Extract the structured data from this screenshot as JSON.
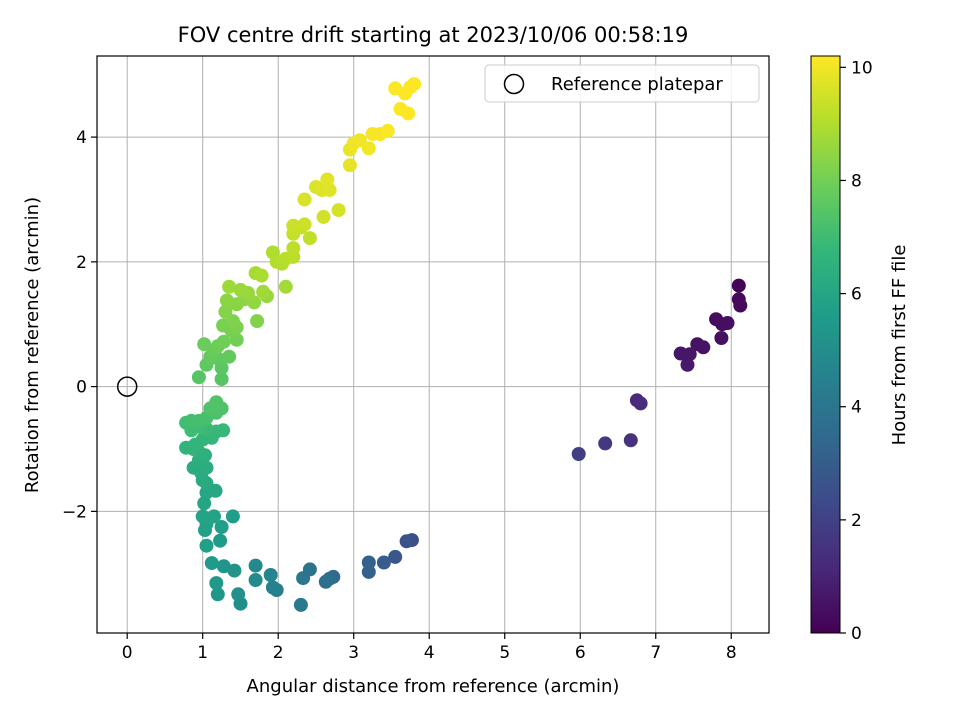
{
  "chart_data": {
    "type": "scatter",
    "title": "FOV centre drift starting at 2023/10/06 00:58:19",
    "xlabel": "Angular distance from reference (arcmin)",
    "ylabel": "Rotation from reference (arcmin)",
    "xlim": [
      -0.4,
      8.5
    ],
    "ylim": [
      -3.95,
      5.3
    ],
    "xticks": [
      0,
      1,
      2,
      3,
      4,
      5,
      6,
      7,
      8
    ],
    "yticks": [
      -2,
      0,
      2,
      4
    ],
    "xtick_labels": [
      "0",
      "1",
      "2",
      "3",
      "4",
      "5",
      "6",
      "7",
      "8"
    ],
    "ytick_labels": [
      "−2",
      "0",
      "2",
      "4"
    ],
    "grid": true,
    "legend": {
      "placement": "top-right",
      "entries": [
        {
          "label": "Reference platepar",
          "marker": "open-circle"
        }
      ]
    },
    "reference_point": {
      "x": 0,
      "y": 0
    },
    "colorbar": {
      "label": "Hours from first FF file",
      "colormap": "viridis",
      "range": [
        0,
        10.2
      ],
      "ticks": [
        0,
        2,
        4,
        6,
        8,
        10
      ],
      "tick_labels": [
        "0",
        "2",
        "4",
        "6",
        "8",
        "10"
      ]
    },
    "colormap_stops": [
      "#440154",
      "#482878",
      "#3e4989",
      "#31688e",
      "#26828e",
      "#1f9e89",
      "#35b779",
      "#6ece58",
      "#b5de2b",
      "#fde725"
    ],
    "points": [
      [
        8.1,
        1.62,
        0.1
      ],
      [
        8.1,
        1.4,
        0.2
      ],
      [
        8.12,
        1.3,
        0.25
      ],
      [
        7.8,
        1.08,
        0.3
      ],
      [
        7.88,
        1.0,
        0.35
      ],
      [
        7.95,
        1.02,
        0.4
      ],
      [
        7.87,
        0.78,
        0.45
      ],
      [
        7.55,
        0.68,
        0.5
      ],
      [
        7.63,
        0.63,
        0.55
      ],
      [
        7.45,
        0.52,
        0.6
      ],
      [
        7.33,
        0.53,
        0.65
      ],
      [
        7.42,
        0.35,
        0.7
      ],
      [
        6.75,
        -0.22,
        1.2
      ],
      [
        6.8,
        -0.27,
        1.3
      ],
      [
        6.67,
        -0.86,
        1.5
      ],
      [
        6.33,
        -0.91,
        1.7
      ],
      [
        5.98,
        -1.08,
        1.9
      ],
      [
        3.77,
        -2.46,
        2.5
      ],
      [
        3.7,
        -2.48,
        2.6
      ],
      [
        3.55,
        -2.73,
        2.8
      ],
      [
        3.4,
        -2.82,
        3.0
      ],
      [
        3.2,
        -2.82,
        3.1
      ],
      [
        3.2,
        -2.97,
        3.2
      ],
      [
        2.73,
        -3.05,
        3.5
      ],
      [
        2.68,
        -3.08,
        3.6
      ],
      [
        2.63,
        -3.13,
        3.7
      ],
      [
        2.42,
        -2.93,
        3.9
      ],
      [
        2.33,
        -3.07,
        4.0
      ],
      [
        2.3,
        -3.5,
        4.2
      ],
      [
        1.98,
        -3.26,
        4.4
      ],
      [
        1.93,
        -3.22,
        4.5
      ],
      [
        1.9,
        -3.02,
        4.6
      ],
      [
        1.7,
        -2.87,
        4.8
      ],
      [
        1.7,
        -3.1,
        4.9
      ],
      [
        1.5,
        -3.48,
        5.0
      ],
      [
        1.47,
        -3.33,
        5.1
      ],
      [
        1.42,
        -2.95,
        5.2
      ],
      [
        1.28,
        -2.88,
        5.3
      ],
      [
        1.2,
        -3.33,
        5.4
      ],
      [
        1.18,
        -3.15,
        5.45
      ],
      [
        1.12,
        -2.83,
        5.5
      ],
      [
        1.23,
        -2.47,
        5.6
      ],
      [
        1.4,
        -2.08,
        5.65
      ],
      [
        1.25,
        -2.25,
        5.7
      ],
      [
        1.05,
        -2.55,
        5.75
      ],
      [
        1.03,
        -2.3,
        5.8
      ],
      [
        1.05,
        -2.2,
        5.85
      ],
      [
        1.15,
        -2.08,
        5.9
      ],
      [
        1.0,
        -2.08,
        5.95
      ],
      [
        1.02,
        -1.87,
        6.0
      ],
      [
        1.05,
        -1.7,
        6.05
      ],
      [
        1.17,
        -1.67,
        6.1
      ],
      [
        1.05,
        -1.55,
        6.15
      ],
      [
        1.0,
        -1.5,
        6.2
      ],
      [
        0.98,
        -1.38,
        6.25
      ],
      [
        0.88,
        -1.3,
        6.3
      ],
      [
        1.05,
        -1.3,
        6.35
      ],
      [
        0.95,
        -1.18,
        6.4
      ],
      [
        1.03,
        -1.1,
        6.45
      ],
      [
        0.95,
        -1.05,
        6.5
      ],
      [
        0.88,
        -1.0,
        6.55
      ],
      [
        0.78,
        -0.98,
        6.6
      ],
      [
        0.9,
        -0.93,
        6.65
      ],
      [
        1.0,
        -0.85,
        6.7
      ],
      [
        1.12,
        -0.82,
        6.75
      ],
      [
        1.18,
        -0.72,
        6.8
      ],
      [
        1.27,
        -0.7,
        6.85
      ],
      [
        1.05,
        -0.68,
        6.9
      ],
      [
        0.98,
        -0.65,
        6.95
      ],
      [
        0.85,
        -0.7,
        7.0
      ],
      [
        0.78,
        -0.58,
        7.05
      ],
      [
        0.85,
        -0.55,
        7.1
      ],
      [
        0.95,
        -0.55,
        7.15
      ],
      [
        1.05,
        -0.5,
        7.2
      ],
      [
        1.18,
        -0.42,
        7.25
      ],
      [
        1.25,
        -0.35,
        7.3
      ],
      [
        1.1,
        -0.35,
        7.35
      ],
      [
        1.18,
        -0.25,
        7.4
      ],
      [
        0.95,
        0.15,
        7.45
      ],
      [
        1.25,
        0.12,
        7.5
      ],
      [
        1.25,
        0.3,
        7.55
      ],
      [
        1.05,
        0.35,
        7.6
      ],
      [
        1.2,
        0.45,
        7.65
      ],
      [
        1.35,
        0.48,
        7.7
      ],
      [
        1.1,
        0.48,
        7.75
      ],
      [
        1.15,
        0.58,
        7.8
      ],
      [
        1.02,
        0.68,
        7.85
      ],
      [
        1.2,
        0.65,
        7.9
      ],
      [
        1.28,
        0.72,
        7.95
      ],
      [
        1.45,
        0.75,
        8.0
      ],
      [
        1.38,
        0.9,
        8.05
      ],
      [
        1.27,
        0.98,
        8.1
      ],
      [
        1.45,
        0.95,
        8.15
      ],
      [
        1.4,
        1.05,
        8.2
      ],
      [
        1.72,
        1.05,
        8.25
      ],
      [
        1.3,
        1.2,
        8.3
      ],
      [
        1.45,
        1.32,
        8.35
      ],
      [
        1.32,
        1.38,
        8.4
      ],
      [
        1.55,
        1.4,
        8.45
      ],
      [
        1.68,
        1.35,
        8.5
      ],
      [
        1.85,
        1.45,
        8.55
      ],
      [
        1.6,
        1.5,
        8.6
      ],
      [
        1.5,
        1.55,
        8.65
      ],
      [
        1.35,
        1.6,
        8.7
      ],
      [
        1.8,
        1.52,
        8.75
      ],
      [
        2.1,
        1.6,
        8.8
      ],
      [
        1.7,
        1.82,
        8.85
      ],
      [
        1.78,
        1.78,
        8.9
      ],
      [
        1.93,
        2.15,
        8.95
      ],
      [
        1.98,
        2.0,
        9.0
      ],
      [
        2.05,
        1.97,
        9.05
      ],
      [
        2.1,
        2.05,
        9.1
      ],
      [
        2.2,
        2.08,
        9.15
      ],
      [
        2.2,
        2.22,
        9.2
      ],
      [
        2.42,
        2.38,
        9.25
      ],
      [
        2.2,
        2.45,
        9.3
      ],
      [
        2.3,
        2.55,
        9.35
      ],
      [
        2.2,
        2.58,
        9.4
      ],
      [
        2.35,
        2.6,
        9.45
      ],
      [
        2.6,
        2.72,
        9.5
      ],
      [
        2.8,
        2.83,
        9.55
      ],
      [
        2.35,
        3.0,
        9.6
      ],
      [
        2.5,
        3.2,
        9.65
      ],
      [
        2.58,
        3.15,
        9.7
      ],
      [
        2.68,
        3.15,
        9.75
      ],
      [
        2.65,
        3.32,
        9.8
      ],
      [
        2.95,
        3.55,
        9.85
      ],
      [
        2.95,
        3.8,
        9.9
      ],
      [
        3.0,
        3.9,
        9.95
      ],
      [
        3.08,
        3.95,
        10.0
      ],
      [
        3.2,
        3.82,
        10.05
      ],
      [
        3.25,
        4.05,
        10.1
      ],
      [
        3.35,
        4.05,
        10.12
      ],
      [
        3.45,
        4.1,
        10.15
      ],
      [
        3.55,
        4.78,
        10.17
      ],
      [
        3.62,
        4.45,
        10.18
      ],
      [
        3.68,
        4.7,
        10.19
      ],
      [
        3.72,
        4.38,
        10.2
      ],
      [
        3.75,
        4.8,
        10.2
      ],
      [
        3.8,
        4.85,
        10.2
      ]
    ]
  }
}
